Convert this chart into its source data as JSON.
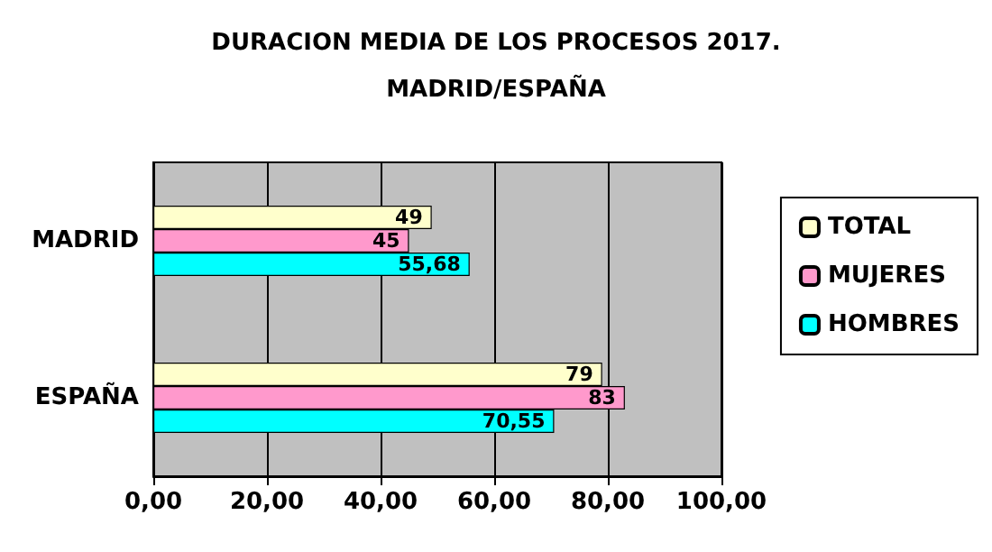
{
  "chart_data": {
    "type": "bar",
    "orientation": "horizontal",
    "title": "DURACION MEDIA DE LOS PROCESOS 2017.\nMADRID/ESPAÑA",
    "categories": [
      "MADRID",
      "ESPAÑA"
    ],
    "series": [
      {
        "name": "TOTAL",
        "color": "#ffffcc",
        "values": [
          49,
          79
        ],
        "value_labels": [
          "49",
          "79"
        ]
      },
      {
        "name": "MUJERES",
        "color": "#ff99cc",
        "values": [
          45,
          83
        ],
        "value_labels": [
          "45",
          "83"
        ]
      },
      {
        "name": "HOMBRES",
        "color": "#00ffff",
        "values": [
          55.68,
          70.55
        ],
        "value_labels": [
          "55,68",
          "70,55"
        ]
      }
    ],
    "xlim": [
      0,
      100
    ],
    "xticks": [
      {
        "value": 0,
        "label": "0,00"
      },
      {
        "value": 20,
        "label": "20,00"
      },
      {
        "value": 40,
        "label": "40,00"
      },
      {
        "value": 60,
        "label": "60,00"
      },
      {
        "value": 80,
        "label": "80,00"
      },
      {
        "value": 100,
        "label": "100,00"
      }
    ],
    "grid": "x",
    "legend": "right"
  }
}
